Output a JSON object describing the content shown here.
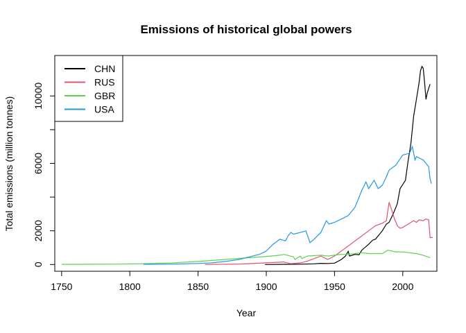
{
  "chart_data": {
    "type": "line",
    "title": "Emissions of historical global powers",
    "xlabel": "Year",
    "ylabel": "Total emissions (million tonnes)",
    "xlim": [
      1745,
      2025
    ],
    "ylim": [
      -400,
      12400
    ],
    "x_ticks": [
      1750,
      1800,
      1850,
      1900,
      1950,
      2000
    ],
    "y_ticks": [
      0,
      2000,
      4000,
      6000,
      8000,
      10000
    ],
    "y_tick_labels": [
      "0",
      "2000",
      "",
      "6000",
      "",
      "10000"
    ],
    "grid": false,
    "legend_position": "top-left",
    "series": [
      {
        "name": "CHN",
        "color": "#000000",
        "points": [
          [
            1899,
            0
          ],
          [
            1915,
            10
          ],
          [
            1925,
            20
          ],
          [
            1935,
            40
          ],
          [
            1940,
            70
          ],
          [
            1945,
            60
          ],
          [
            1950,
            80
          ],
          [
            1955,
            300
          ],
          [
            1958,
            500
          ],
          [
            1960,
            780
          ],
          [
            1961,
            500
          ],
          [
            1963,
            550
          ],
          [
            1965,
            600
          ],
          [
            1968,
            580
          ],
          [
            1970,
            850
          ],
          [
            1975,
            1200
          ],
          [
            1978,
            1450
          ],
          [
            1980,
            1500
          ],
          [
            1985,
            2000
          ],
          [
            1988,
            2400
          ],
          [
            1990,
            2500
          ],
          [
            1993,
            3000
          ],
          [
            1996,
            3600
          ],
          [
            1998,
            4500
          ],
          [
            2000,
            4750
          ],
          [
            2002,
            5000
          ],
          [
            2004,
            6200
          ],
          [
            2006,
            7200
          ],
          [
            2008,
            8800
          ],
          [
            2010,
            9800
          ],
          [
            2012,
            10800
          ],
          [
            2013,
            11500
          ],
          [
            2014,
            11750
          ],
          [
            2015,
            11650
          ],
          [
            2016,
            10800
          ],
          [
            2017,
            9800
          ],
          [
            2018,
            10200
          ],
          [
            2020,
            10700
          ]
        ]
      },
      {
        "name": "RUS",
        "color": "#DF536B",
        "points": [
          [
            1855,
            0
          ],
          [
            1880,
            30
          ],
          [
            1900,
            100
          ],
          [
            1913,
            150
          ],
          [
            1918,
            50
          ],
          [
            1925,
            100
          ],
          [
            1930,
            200
          ],
          [
            1935,
            350
          ],
          [
            1940,
            500
          ],
          [
            1945,
            300
          ],
          [
            1950,
            500
          ],
          [
            1955,
            800
          ],
          [
            1960,
            1100
          ],
          [
            1965,
            1400
          ],
          [
            1970,
            1700
          ],
          [
            1975,
            2000
          ],
          [
            1980,
            2300
          ],
          [
            1985,
            2450
          ],
          [
            1988,
            2600
          ],
          [
            1990,
            3700
          ],
          [
            1992,
            3200
          ],
          [
            1994,
            2700
          ],
          [
            1996,
            2300
          ],
          [
            1998,
            2150
          ],
          [
            2000,
            2200
          ],
          [
            2004,
            2400
          ],
          [
            2008,
            2600
          ],
          [
            2010,
            2500
          ],
          [
            2012,
            2650
          ],
          [
            2015,
            2600
          ],
          [
            2017,
            2700
          ],
          [
            2019,
            2650
          ],
          [
            2020,
            1600
          ],
          [
            2022,
            1600
          ]
        ]
      },
      {
        "name": "GBR",
        "color": "#61D04F",
        "points": [
          [
            1750,
            10
          ],
          [
            1770,
            15
          ],
          [
            1790,
            25
          ],
          [
            1810,
            50
          ],
          [
            1830,
            90
          ],
          [
            1850,
            180
          ],
          [
            1870,
            300
          ],
          [
            1880,
            360
          ],
          [
            1890,
            420
          ],
          [
            1900,
            480
          ],
          [
            1910,
            550
          ],
          [
            1913,
            600
          ],
          [
            1920,
            450
          ],
          [
            1921,
            300
          ],
          [
            1925,
            500
          ],
          [
            1926,
            350
          ],
          [
            1930,
            500
          ],
          [
            1940,
            550
          ],
          [
            1945,
            500
          ],
          [
            1950,
            550
          ],
          [
            1955,
            600
          ],
          [
            1960,
            600
          ],
          [
            1965,
            650
          ],
          [
            1970,
            700
          ],
          [
            1975,
            650
          ],
          [
            1980,
            650
          ],
          [
            1985,
            650
          ],
          [
            1989,
            850
          ],
          [
            1995,
            750
          ],
          [
            2000,
            750
          ],
          [
            2005,
            700
          ],
          [
            2010,
            650
          ],
          [
            2015,
            550
          ],
          [
            2020,
            400
          ]
        ]
      },
      {
        "name": "USA",
        "color": "#2297E6",
        "points": [
          [
            1810,
            10
          ],
          [
            1830,
            20
          ],
          [
            1850,
            60
          ],
          [
            1860,
            100
          ],
          [
            1870,
            180
          ],
          [
            1880,
            300
          ],
          [
            1885,
            400
          ],
          [
            1890,
            500
          ],
          [
            1895,
            600
          ],
          [
            1900,
            800
          ],
          [
            1905,
            1200
          ],
          [
            1910,
            1500
          ],
          [
            1914,
            1400
          ],
          [
            1916,
            1700
          ],
          [
            1918,
            1900
          ],
          [
            1920,
            1800
          ],
          [
            1925,
            1900
          ],
          [
            1929,
            2000
          ],
          [
            1932,
            1300
          ],
          [
            1935,
            1500
          ],
          [
            1940,
            1900
          ],
          [
            1944,
            2600
          ],
          [
            1946,
            2400
          ],
          [
            1950,
            2500
          ],
          [
            1955,
            2700
          ],
          [
            1960,
            2900
          ],
          [
            1965,
            3400
          ],
          [
            1970,
            4400
          ],
          [
            1973,
            4900
          ],
          [
            1975,
            4500
          ],
          [
            1979,
            5000
          ],
          [
            1982,
            4500
          ],
          [
            1985,
            4700
          ],
          [
            1988,
            5200
          ],
          [
            1990,
            5600
          ],
          [
            1995,
            5900
          ],
          [
            2000,
            6500
          ],
          [
            2005,
            6600
          ],
          [
            2007,
            7000
          ],
          [
            2009,
            6200
          ],
          [
            2010,
            6400
          ],
          [
            2015,
            6200
          ],
          [
            2018,
            5900
          ],
          [
            2019,
            5800
          ],
          [
            2020,
            5100
          ],
          [
            2021,
            4800
          ]
        ]
      }
    ]
  }
}
